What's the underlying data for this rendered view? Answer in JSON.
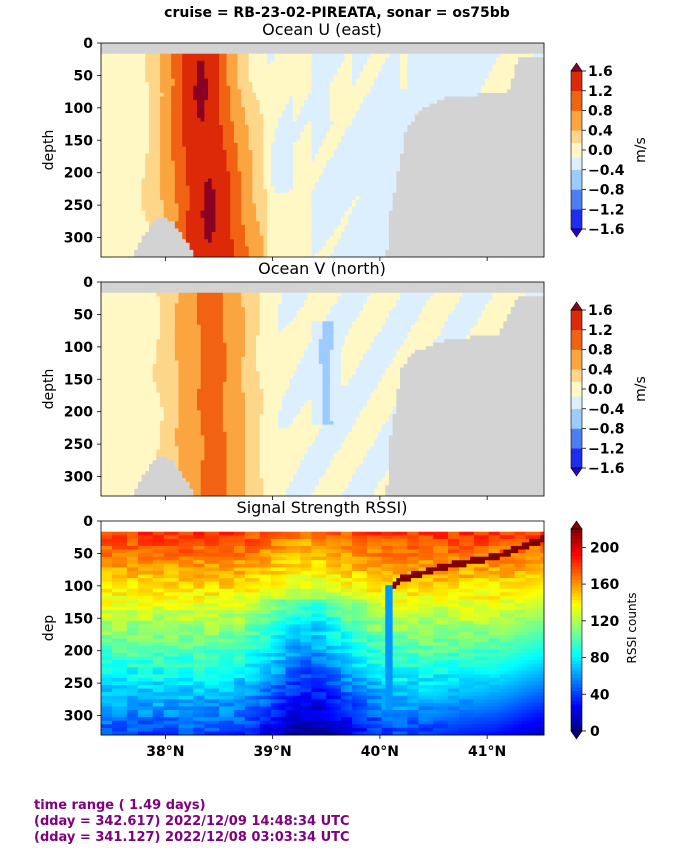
{
  "suptitle": "cruise = RB-23-02-PIREATA,  sonar = os75bb",
  "colors": {
    "land_gray": "#d3d3d3",
    "footer_purple": "#800080",
    "diverging_levels": [
      "#2b00d0",
      "#1e2ef0",
      "#4a7ff5",
      "#9ccbfd",
      "#dcefff",
      "#fff7c4",
      "#fed68a",
      "#fba541",
      "#f16313",
      "#dc2a09",
      "#8b0022"
    ],
    "jet_levels": [
      "#000080",
      "#0000ff",
      "#0080ff",
      "#00ffff",
      "#80ff80",
      "#ffff00",
      "#ff8000",
      "#ff0000",
      "#800000"
    ]
  },
  "chart_data": [
    {
      "type": "heatmap",
      "title": "Ocean U (east)",
      "ylabel": "depth",
      "xlabel": "",
      "ylim": [
        330,
        0
      ],
      "xlim": [
        37.4,
        41.53
      ],
      "yticks": [
        "0",
        "50",
        "100",
        "150",
        "200",
        "250",
        "300"
      ],
      "colorbar": {
        "label": "m/s",
        "ticks": [
          "1.6",
          "1.2",
          "0.8",
          "0.4",
          "0.0",
          "−0.4",
          "−0.8",
          "−1.2",
          "−1.6"
        ],
        "levels": [
          -1.6,
          -1.2,
          -0.8,
          -0.4,
          -0.15,
          0.15,
          0.4,
          0.8,
          1.2,
          1.6
        ],
        "extend": "both"
      },
      "jet_core_lat": [
        38.31,
        38.36,
        38.44
      ],
      "jet_core_depth": [
        20,
        150,
        330
      ],
      "peak_speed": 1.6
    },
    {
      "type": "heatmap",
      "title": "Ocean V (north)",
      "ylabel": "depth",
      "xlabel": "",
      "ylim": [
        330,
        0
      ],
      "xlim": [
        37.4,
        41.53
      ],
      "yticks": [
        "0",
        "50",
        "100",
        "150",
        "200",
        "250",
        "300"
      ],
      "colorbar": {
        "label": "m/s",
        "ticks": [
          "1.6",
          "1.2",
          "0.8",
          "0.4",
          "0.0",
          "−0.4",
          "−0.8",
          "−1.2",
          "−1.6"
        ],
        "levels": [
          -1.6,
          -1.2,
          -0.8,
          -0.4,
          -0.15,
          0.15,
          0.4,
          0.8,
          1.2,
          1.6
        ],
        "extend": "both"
      },
      "core_lat": 38.42,
      "peak_speed": 0.9
    },
    {
      "type": "heatmap",
      "title": "Signal Strength RSSI)",
      "ylabel": "dep",
      "xlabel": "",
      "ylim": [
        330,
        0
      ],
      "xlim": [
        37.4,
        41.53
      ],
      "yticks": [
        "0",
        "50",
        "100",
        "150",
        "200",
        "250",
        "300"
      ],
      "xticks": [
        "38°N",
        "39°N",
        "40°N",
        "41°N"
      ],
      "xtick_values": [
        38,
        39,
        40,
        41
      ],
      "colorbar": {
        "label": "RSSI counts",
        "ticks": [
          "200",
          "160",
          "120",
          "80",
          "40",
          "0"
        ],
        "range": [
          0,
          220
        ]
      }
    }
  ],
  "footer": {
    "line1": "time range ( 1.49 days)",
    "line2": "(dday = 342.617) 2022/12/09 14:48:34 UTC",
    "line3": "(dday = 341.127) 2022/12/08 03:03:34 UTC"
  }
}
